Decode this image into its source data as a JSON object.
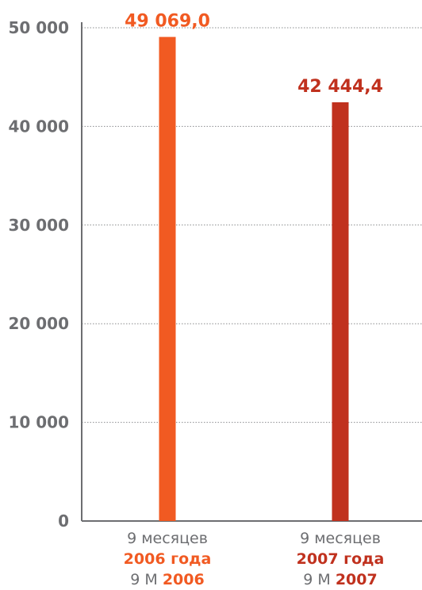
{
  "chart_data": {
    "type": "bar",
    "ylim": [
      0,
      50000
    ],
    "y_ticks": [
      {
        "value": 0,
        "label": "0"
      },
      {
        "value": 10000,
        "label": "10 000"
      },
      {
        "value": 20000,
        "label": "20 000"
      },
      {
        "value": 30000,
        "label": "30 000"
      },
      {
        "value": 40000,
        "label": "40 000"
      },
      {
        "value": 50000,
        "label": "50 000"
      }
    ],
    "grid": true,
    "categories": [
      {
        "line1": "9 месяцев",
        "line2": "2006 года",
        "line3_prefix": "9 М ",
        "line3_year": "2006"
      },
      {
        "line1": "9 месяцев",
        "line2": "2007 года",
        "line3_prefix": "9 М ",
        "line3_year": "2007"
      }
    ],
    "values": [
      49069.0,
      42444.4
    ],
    "value_labels": [
      "49 069,0",
      "42 444,4"
    ],
    "colors": [
      "#f15a22",
      "#c0311e"
    ],
    "axis_text_color": "#6d6e71",
    "grid_color": "#8a8c8e"
  }
}
